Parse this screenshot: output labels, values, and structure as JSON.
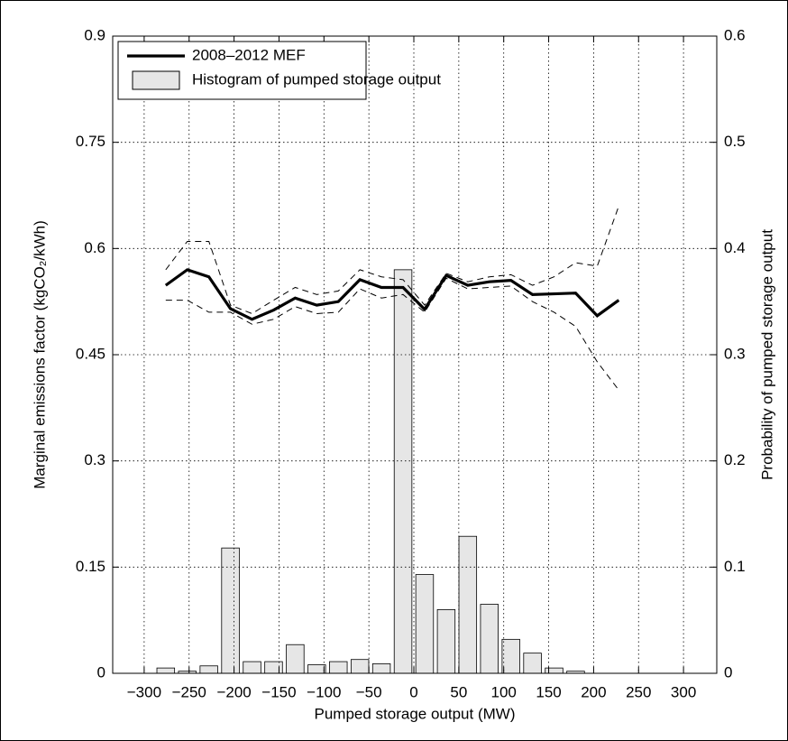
{
  "chart_data": {
    "type": "line",
    "xlabel": "Pumped storage output (MW)",
    "ylabel": "Marginal emissions factor (kgCO₂/kWh)",
    "y2label": "Probability of pumped storage output",
    "xlim": [
      -335,
      337
    ],
    "ylim": [
      0,
      0.9
    ],
    "y2lim": [
      0,
      0.6
    ],
    "grid": true,
    "legend": "upper left",
    "xticks": [
      {
        "value": -300,
        "label": "−300"
      },
      {
        "value": -250,
        "label": "−250"
      },
      {
        "value": -200,
        "label": "−200"
      },
      {
        "value": -150,
        "label": "−150"
      },
      {
        "value": -100,
        "label": "−100"
      },
      {
        "value": -50,
        "label": "−50"
      },
      0,
      50,
      100,
      150,
      200,
      250,
      300
    ],
    "yticks": [
      0,
      0.15,
      0.3,
      0.45,
      0.6,
      0.75,
      0.9
    ],
    "y2ticks": [
      0,
      0.1,
      0.2,
      0.3,
      0.4,
      0.5,
      0.6
    ],
    "x": [
      -276,
      -252,
      -228,
      -204,
      -180,
      -156,
      -132,
      -108,
      -84,
      -60,
      -36,
      -12,
      12,
      36,
      60,
      84,
      108,
      132,
      156,
      180,
      204,
      228
    ],
    "series": [
      {
        "name": "2008–2012 MEF",
        "color": "#000000",
        "style": "solid",
        "values": [
          0.548,
          0.57,
          0.56,
          0.515,
          0.5,
          0.513,
          0.53,
          0.52,
          0.525,
          0.556,
          0.545,
          0.545,
          0.514,
          0.562,
          0.548,
          0.553,
          0.555,
          0.535,
          0.536,
          0.537,
          0.505,
          0.527
        ]
      },
      {
        "color": "#000000",
        "style": "dashed",
        "values": [
          0.57,
          0.61,
          0.61,
          0.52,
          0.508,
          0.527,
          0.545,
          0.535,
          0.54,
          0.57,
          0.56,
          0.556,
          0.52,
          0.565,
          0.553,
          0.56,
          0.563,
          0.548,
          0.56,
          0.58,
          0.575,
          0.66
        ]
      },
      {
        "color": "#000000",
        "style": "dashed",
        "values": [
          0.527,
          0.527,
          0.51,
          0.51,
          0.493,
          0.5,
          0.518,
          0.508,
          0.51,
          0.543,
          0.53,
          0.535,
          0.51,
          0.558,
          0.543,
          0.545,
          0.547,
          0.525,
          0.51,
          0.49,
          0.44,
          0.4
        ]
      }
    ],
    "histogram": {
      "name": "Histogram of pumped storage output",
      "color": "#e6e6e6",
      "axis": "y2",
      "bins": [
        -288,
        -264,
        -240,
        -216,
        -192,
        -168,
        -144,
        -120,
        -96,
        -72,
        -48,
        -24,
        0,
        24,
        48,
        72,
        96,
        120,
        144,
        168,
        192
      ],
      "values": [
        0.005,
        0.002,
        0.007,
        0.118,
        0.011,
        0.011,
        0.027,
        0.008,
        0.011,
        0.013,
        0.009,
        0.38,
        0.093,
        0.06,
        0.129,
        0.065,
        0.032,
        0.019,
        0.005,
        0.002
      ]
    }
  }
}
